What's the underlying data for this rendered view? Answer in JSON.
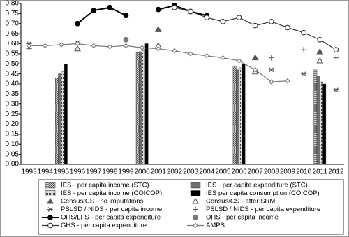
{
  "chart_data": {
    "type": "combo",
    "categories": [
      "1993",
      "1994",
      "1995",
      "1996",
      "1997",
      "1998",
      "1999",
      "2000",
      "2001",
      "2002",
      "2003",
      "2004",
      "2005",
      "2006",
      "2007",
      "2008",
      "2009",
      "2010",
      "2011",
      "2012"
    ],
    "ylim": [
      0,
      0.8
    ],
    "yticks": [
      {
        "value": 0,
        "label": "0.00"
      },
      {
        "value": 0.05,
        "label": "0.05"
      },
      {
        "value": 0.1,
        "label": "0.10"
      },
      {
        "value": 0.15,
        "label": "0.15"
      },
      {
        "value": 0.2,
        "label": "0.20"
      },
      {
        "value": 0.25,
        "label": "0.25"
      },
      {
        "value": 0.3,
        "label": "0.30"
      },
      {
        "value": 0.35,
        "label": "0.35"
      },
      {
        "value": 0.4,
        "label": "0.40"
      },
      {
        "value": 0.45,
        "label": "0.45"
      },
      {
        "value": 0.5,
        "label": "0.50"
      },
      {
        "value": 0.55,
        "label": "0.55"
      },
      {
        "value": 0.6,
        "label": "0.60"
      },
      {
        "value": 0.65,
        "label": "0.65"
      },
      {
        "value": 0.7,
        "label": "0.70"
      },
      {
        "value": 0.75,
        "label": "0.75"
      },
      {
        "value": 0.8,
        "label": "0.80"
      }
    ],
    "grid": false,
    "legend": "bottom",
    "series": [
      {
        "name": "IES - per capita income (STC)",
        "type": "bar",
        "pattern": "crosshatch",
        "color": "#555555",
        "values": [
          null,
          null,
          0.43,
          null,
          null,
          null,
          null,
          0.555,
          null,
          null,
          null,
          null,
          null,
          0.49,
          null,
          null,
          null,
          null,
          0.47,
          null
        ]
      },
      {
        "name": "IES - per capita expenditure (STC)",
        "type": "bar",
        "pattern": "solid",
        "color": "#707070",
        "values": [
          null,
          null,
          0.45,
          null,
          null,
          null,
          null,
          0.56,
          null,
          null,
          null,
          null,
          null,
          0.47,
          null,
          null,
          null,
          null,
          0.44,
          null
        ]
      },
      {
        "name": "IES - per capita income (COICOP)",
        "type": "bar",
        "pattern": "dots",
        "color": "#555555",
        "values": [
          null,
          null,
          0.46,
          null,
          null,
          null,
          null,
          0.565,
          null,
          null,
          null,
          null,
          null,
          0.48,
          null,
          null,
          null,
          null,
          0.41,
          null
        ]
      },
      {
        "name": "IES per capita consumption (COICOP)",
        "type": "bar",
        "pattern": "solid",
        "color": "#000000",
        "values": [
          null,
          null,
          0.5,
          null,
          null,
          null,
          null,
          0.6,
          null,
          null,
          null,
          null,
          null,
          0.5,
          null,
          null,
          null,
          null,
          0.4,
          null
        ]
      },
      {
        "name": "Census/CS - no imputations",
        "type": "marker",
        "marker": "triangle-filled",
        "color": "#555555",
        "values": [
          null,
          null,
          null,
          null,
          null,
          null,
          null,
          null,
          0.67,
          null,
          null,
          null,
          null,
          null,
          0.53,
          null,
          null,
          null,
          0.56,
          null
        ]
      },
      {
        "name": "Census/CS - after SRMI",
        "type": "marker",
        "marker": "triangle-open",
        "color": "#555555",
        "values": [
          null,
          null,
          null,
          0.575,
          null,
          null,
          null,
          null,
          0.59,
          null,
          null,
          null,
          null,
          null,
          0.46,
          null,
          null,
          null,
          0.515,
          null
        ]
      },
      {
        "name": "PSLSD / NIDS - per capita income",
        "type": "marker",
        "marker": "asterisk",
        "color": "#555555",
        "values": [
          0.6,
          null,
          null,
          0.605,
          null,
          null,
          null,
          null,
          null,
          null,
          null,
          null,
          null,
          null,
          null,
          0.47,
          null,
          0.45,
          null,
          0.37
        ]
      },
      {
        "name": "PSLSD / NIDS - per capita expenditure",
        "type": "marker",
        "marker": "plus",
        "color": "#555555",
        "values": [
          0.575,
          null,
          null,
          null,
          null,
          null,
          null,
          null,
          null,
          null,
          null,
          null,
          null,
          null,
          null,
          0.53,
          null,
          0.57,
          null,
          0.53
        ]
      },
      {
        "name": "OHS/LFS - per capita expenditure",
        "type": "line",
        "marker": "circle-filled",
        "color": "#000000",
        "values": [
          null,
          null,
          null,
          0.7,
          0.765,
          0.78,
          0.74,
          null,
          0.77,
          0.79,
          0.76,
          0.74,
          null,
          null,
          null,
          null,
          null,
          null,
          null,
          null
        ]
      },
      {
        "name": "OHS - per capita income",
        "type": "marker",
        "marker": "circle-gray",
        "color": "#666666",
        "values": [
          null,
          null,
          null,
          null,
          null,
          null,
          0.62,
          null,
          null,
          null,
          null,
          null,
          null,
          null,
          null,
          null,
          null,
          null,
          null,
          null
        ]
      },
      {
        "name": "GHS - per capita expenditure",
        "type": "line",
        "marker": "circle-open",
        "color": "#333333",
        "values": [
          null,
          null,
          null,
          null,
          null,
          null,
          null,
          null,
          null,
          0.78,
          0.76,
          0.73,
          0.71,
          0.73,
          0.69,
          0.71,
          0.68,
          0.655,
          0.62,
          0.57
        ]
      },
      {
        "name": "AMPS",
        "type": "line",
        "marker": "diamond-open",
        "color": "#777777",
        "values": [
          0.59,
          0.59,
          0.595,
          0.6,
          0.59,
          0.585,
          0.59,
          0.58,
          0.575,
          0.565,
          0.55,
          0.54,
          0.53,
          0.515,
          0.47,
          0.41,
          0.415,
          null,
          null,
          null
        ]
      }
    ]
  }
}
